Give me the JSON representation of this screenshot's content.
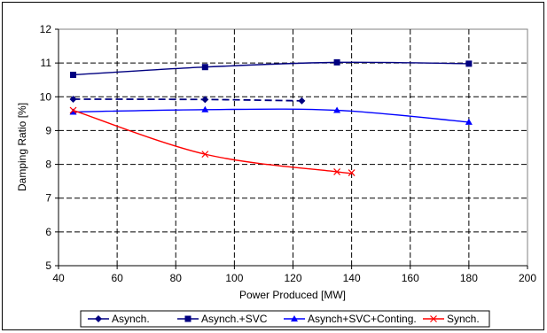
{
  "chart_data": {
    "type": "line",
    "title": "",
    "xlabel": "Power Produced [MW]",
    "ylabel": "Damping Ratio [%]",
    "xlim": [
      40,
      200
    ],
    "ylim": [
      5,
      12
    ],
    "xticks": [
      40,
      60,
      80,
      100,
      120,
      140,
      160,
      180,
      200
    ],
    "yticks": [
      5,
      6,
      7,
      8,
      9,
      10,
      11,
      12
    ],
    "grid": "dashed",
    "legend_position": "bottom",
    "series": [
      {
        "name": "Asynch.",
        "color": "#000080",
        "marker": "diamond",
        "line_style": "dashed",
        "x": [
          45,
          90,
          123
        ],
        "y": [
          9.93,
          9.92,
          9.88
        ]
      },
      {
        "name": "Asynch.+SVC",
        "color": "#000080",
        "marker": "square",
        "line_style": "solid",
        "x": [
          45,
          90,
          135,
          180
        ],
        "y": [
          10.65,
          10.88,
          11.02,
          10.98
        ]
      },
      {
        "name": "Asynch+SVC+Conting.",
        "color": "#0000ff",
        "marker": "triangle",
        "line_style": "solid",
        "x": [
          45,
          90,
          135,
          180
        ],
        "y": [
          9.55,
          9.62,
          9.6,
          9.25
        ]
      },
      {
        "name": "Synch.",
        "color": "#ff0000",
        "marker": "x",
        "line_style": "solid",
        "x": [
          45,
          90,
          135,
          140
        ],
        "y": [
          9.6,
          8.3,
          7.78,
          7.75
        ]
      }
    ]
  }
}
